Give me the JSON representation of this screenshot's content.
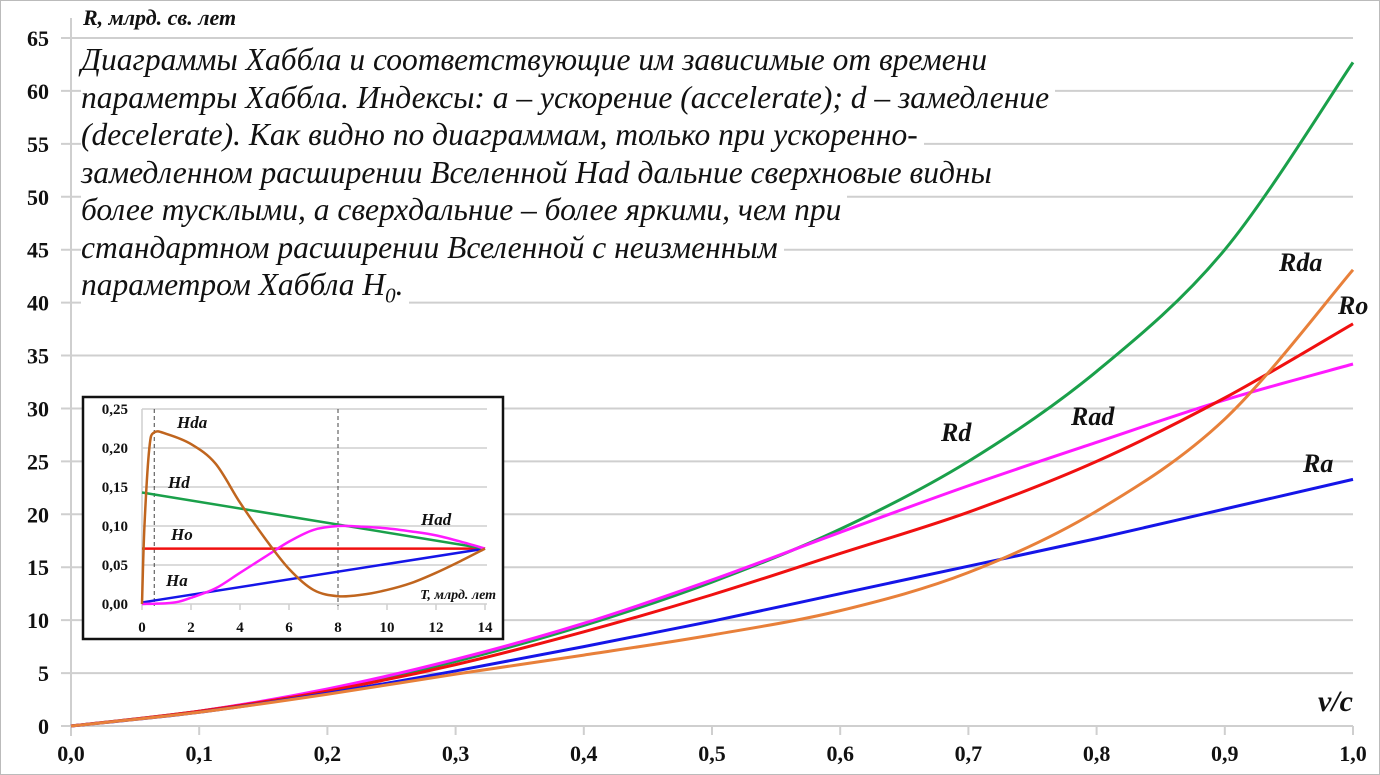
{
  "caption": {
    "lines": [
      "Диаграммы Хаббла и соответствующие им зависимые от времени",
      "параметры Хаббла. Индексы: a – ускорение (accelerate); d – замедление",
      "(decelerate). Как видно по диаграммам, только при ускоренно-",
      "замедленном расширении Вселенной Had дальние сверхновые видны",
      "более тусклыми, а сверхдальние – более яркими, чем при",
      "стандартном расширении Вселенной с неизменным"
    ],
    "last_line": "параметром Хаббла H",
    "last_sub": "0",
    "last_end": "."
  },
  "chart_data": [
    {
      "type": "line",
      "xlabel": "v/c",
      "ylabel": "R, млрд. св. лет",
      "xlim": [
        0,
        1.0
      ],
      "ylim": [
        0,
        65
      ],
      "x_ticks": [
        "0,0",
        "0,1",
        "0,2",
        "0,3",
        "0,4",
        "0,5",
        "0,6",
        "0,7",
        "0,8",
        "0,9",
        "1,0"
      ],
      "y_ticks": [
        "0",
        "5",
        "10",
        "15",
        "20",
        "25",
        "30",
        "35",
        "40",
        "45",
        "50",
        "55",
        "60",
        "65"
      ],
      "grid": "horizontal",
      "x": [
        0,
        0.1,
        0.2,
        0.3,
        0.4,
        0.5,
        0.6,
        0.7,
        0.8,
        0.9,
        1.0
      ],
      "series": [
        {
          "name": "Rd",
          "color": "#1aa04a",
          "values": [
            0,
            1.4,
            3.4,
            6.1,
            9.5,
            13.6,
            18.6,
            25.0,
            33.5,
            45.0,
            62.7
          ]
        },
        {
          "name": "Rad",
          "color": "#ff1aff",
          "values": [
            0,
            1.4,
            3.5,
            6.3,
            9.7,
            13.8,
            18.3,
            22.7,
            26.8,
            30.8,
            34.2
          ]
        },
        {
          "name": "Ro",
          "color": "#f01010",
          "values": [
            0,
            1.4,
            3.3,
            5.8,
            8.9,
            12.4,
            16.3,
            20.2,
            25.0,
            31.0,
            38.0
          ]
        },
        {
          "name": "Ra",
          "color": "#1515e8",
          "values": [
            0,
            1.3,
            3.1,
            5.2,
            7.5,
            9.9,
            12.5,
            15.1,
            17.7,
            20.5,
            23.3
          ]
        },
        {
          "name": "Rda",
          "color": "#e8803a",
          "values": [
            0,
            1.3,
            3.0,
            4.9,
            6.7,
            8.6,
            10.9,
            14.5,
            20.3,
            29.0,
            43.1
          ]
        }
      ]
    },
    {
      "type": "line",
      "xlabel": "T, млрд. лет",
      "xlim": [
        0,
        14
      ],
      "ylim": [
        0,
        0.25
      ],
      "x_ticks": [
        "0",
        "2",
        "4",
        "6",
        "8",
        "10",
        "12",
        "14"
      ],
      "y_ticks": [
        "0,00",
        "0,05",
        "0,10",
        "0,15",
        "0,20",
        "0,25"
      ],
      "grid": "horizontal",
      "reference_lines_x": [
        0.5,
        8
      ],
      "series": [
        {
          "name": "Hda",
          "color": "#c0651e",
          "x": [
            0,
            0.1,
            0.3,
            0.5,
            1,
            2,
            3,
            4,
            5,
            6,
            7,
            8,
            9,
            10,
            11,
            12,
            13,
            14
          ],
          "values": [
            0,
            0.1,
            0.2,
            0.22,
            0.218,
            0.205,
            0.18,
            0.13,
            0.085,
            0.045,
            0.018,
            0.01,
            0.012,
            0.018,
            0.027,
            0.04,
            0.055,
            0.071
          ]
        },
        {
          "name": "Hd",
          "color": "#1aa04a",
          "x": [
            0,
            14
          ],
          "values": [
            0.143,
            0.071
          ]
        },
        {
          "name": "Ho",
          "color": "#f01010",
          "x": [
            0,
            14
          ],
          "values": [
            0.071,
            0.071
          ]
        },
        {
          "name": "Ha",
          "color": "#1515e8",
          "x": [
            0,
            14
          ],
          "values": [
            0.002,
            0.071
          ]
        },
        {
          "name": "Had",
          "color": "#ff1aff",
          "x": [
            0,
            1,
            1.5,
            2,
            3,
            4,
            5,
            6,
            7,
            8,
            9,
            10,
            11,
            12,
            13,
            14
          ],
          "values": [
            0,
            0.001,
            0.003,
            0.008,
            0.02,
            0.04,
            0.06,
            0.08,
            0.095,
            0.1,
            0.099,
            0.097,
            0.093,
            0.088,
            0.08,
            0.071
          ]
        }
      ]
    }
  ]
}
